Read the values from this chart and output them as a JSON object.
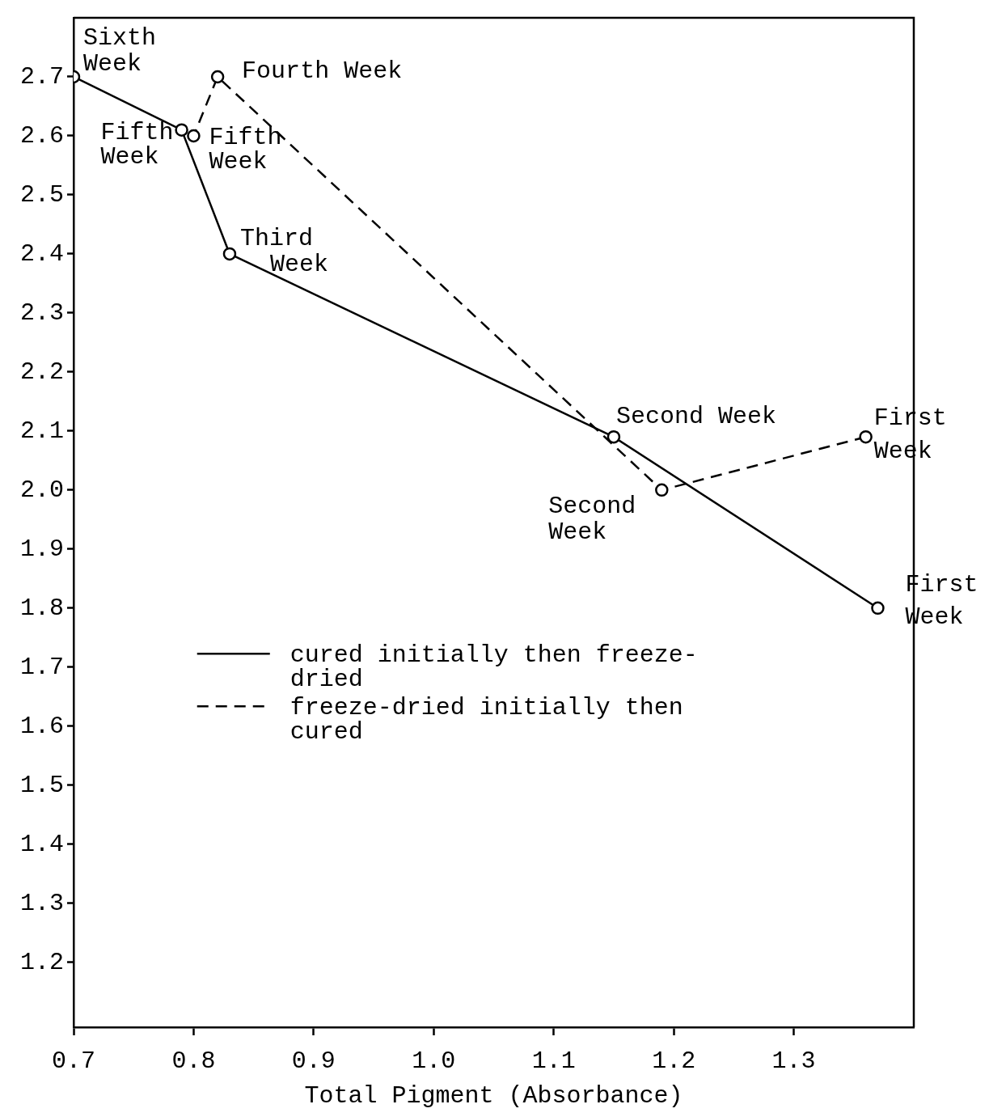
{
  "chart_data": {
    "type": "line",
    "xlabel": "Total Pigment (Absorbance)",
    "xlim": [
      0.7,
      1.4
    ],
    "xticks": [
      0.7,
      0.8,
      0.9,
      {
        "value": 1.0,
        "label": "1.0"
      },
      1.1,
      1.2,
      1.3
    ],
    "ylim": [
      1.09,
      2.8
    ],
    "yticks": [
      1.2,
      1.3,
      1.4,
      1.5,
      1.6,
      1.7,
      1.8,
      1.9,
      {
        "value": 2.0,
        "label": "2.0"
      },
      2.1,
      2.2,
      2.3,
      2.4,
      2.5,
      2.6,
      2.7
    ],
    "grid": false,
    "legend": "left",
    "marker": "circle",
    "series": [
      {
        "name": "cured initially then freeze-dried",
        "color": "#000000",
        "line_style": "solid",
        "x": [
          0.7,
          0.79,
          0.83,
          1.15,
          1.37
        ],
        "values": [
          2.7,
          2.61,
          2.4,
          2.09,
          1.8
        ]
      },
      {
        "name": "freeze-dried initially then cured",
        "color": "#000000",
        "line_style": "dashed",
        "x": [
          1.36,
          1.19,
          0.82,
          0.8
        ],
        "values": [
          2.09,
          2.0,
          2.7,
          2.6
        ]
      }
    ],
    "annotations": [
      {
        "text": "Sixth Week",
        "x": 0.7,
        "y": 2.7
      },
      {
        "text": "Fifth Week",
        "x": 0.79,
        "y": 2.61
      },
      {
        "text": "Fifth Week",
        "x": 0.8,
        "y": 2.6
      },
      {
        "text": "Fourth Week",
        "x": 0.82,
        "y": 2.7
      },
      {
        "text": "Third Week",
        "x": 0.83,
        "y": 2.4
      },
      {
        "text": "Second Week",
        "x": 1.15,
        "y": 2.09
      },
      {
        "text": "First Week",
        "x": 1.36,
        "y": 2.09
      },
      {
        "text": "Second Week",
        "x": 1.19,
        "y": 2.0
      },
      {
        "text": "First Week",
        "x": 1.37,
        "y": 1.8
      }
    ]
  }
}
